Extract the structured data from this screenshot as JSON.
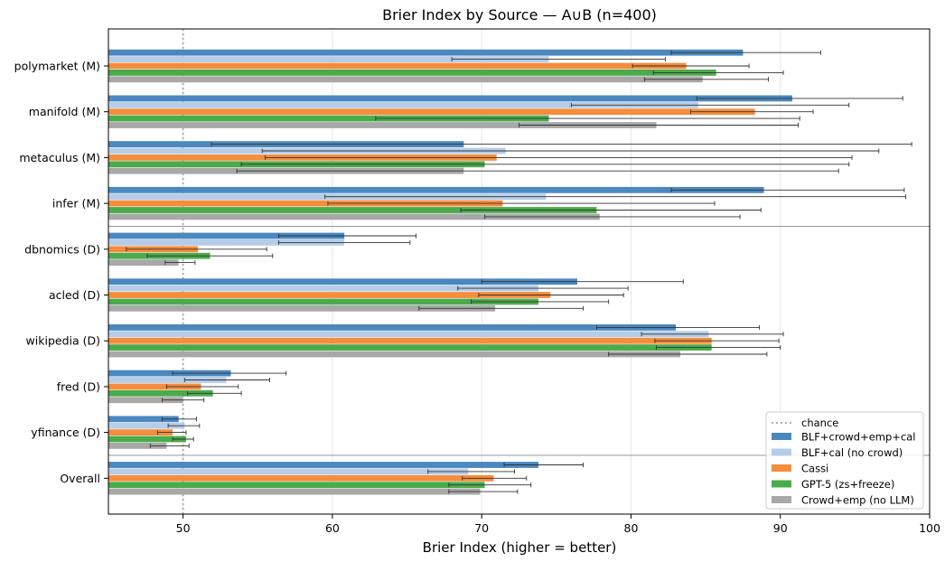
{
  "chart_data": {
    "type": "bar",
    "orientation": "horizontal",
    "title": "Brier Index by Source — A∪B (n=400)",
    "xlabel": "Brier Index (higher = better)",
    "ylabel": "",
    "xlim": [
      45,
      100
    ],
    "xticks": [
      50,
      60,
      70,
      80,
      90,
      100
    ],
    "grid": "x",
    "legend_position": "lower-right",
    "reference_line": {
      "name": "chance",
      "value": 50,
      "color": "#b0b0b0"
    },
    "categories": [
      "polymarket (M)",
      "manifold (M)",
      "metaculus (M)",
      "infer (M)",
      "dbnomics (D)",
      "acled (D)",
      "wikipedia (D)",
      "fred (D)",
      "yfinance (D)",
      "Overall"
    ],
    "group_separators_after": [
      "infer (M)",
      "yfinance (D)"
    ],
    "series": [
      {
        "name": "BLF+crowd+emp+cal",
        "color": "#4a88bf",
        "values": [
          87.5,
          90.8,
          68.8,
          88.9,
          60.8,
          76.4,
          83.0,
          53.2,
          49.7,
          73.8
        ],
        "err_low": [
          82.7,
          84.4,
          51.9,
          82.7,
          56.4,
          70.0,
          77.7,
          49.3,
          48.6,
          71.5
        ],
        "err_high": [
          92.7,
          98.2,
          98.8,
          98.3,
          65.6,
          83.5,
          88.6,
          56.9,
          50.9,
          76.8
        ]
      },
      {
        "name": "BLF+cal (no crowd)",
        "color": "#b5cde8",
        "values": [
          74.5,
          84.5,
          71.6,
          74.3,
          60.8,
          73.8,
          85.2,
          52.9,
          50.1,
          69.1
        ],
        "err_low": [
          68.0,
          76.0,
          55.3,
          59.5,
          56.4,
          68.4,
          80.7,
          50.1,
          49.0,
          66.4
        ],
        "err_high": [
          82.3,
          94.6,
          96.6,
          98.4,
          65.2,
          79.8,
          90.2,
          55.8,
          51.1,
          72.2
        ]
      },
      {
        "name": "Cassi",
        "color": "#f58d3c",
        "values": [
          83.7,
          88.3,
          71.0,
          71.4,
          51.0,
          74.6,
          85.4,
          51.2,
          49.3,
          70.8
        ],
        "err_low": [
          80.1,
          84.0,
          55.5,
          59.7,
          46.2,
          69.8,
          81.6,
          48.9,
          48.3,
          68.7
        ],
        "err_high": [
          87.9,
          92.2,
          94.8,
          85.6,
          55.6,
          79.5,
          89.9,
          53.7,
          50.2,
          73.0
        ]
      },
      {
        "name": "GPT-5 (zs+freeze)",
        "color": "#4aab4b",
        "values": [
          85.7,
          74.5,
          70.2,
          77.7,
          51.8,
          73.8,
          85.4,
          52.0,
          50.2,
          70.2
        ],
        "err_low": [
          81.5,
          62.9,
          53.9,
          68.6,
          47.6,
          69.3,
          81.7,
          50.3,
          49.3,
          67.8
        ],
        "err_high": [
          90.2,
          91.3,
          94.6,
          88.7,
          56.0,
          78.5,
          90.0,
          53.9,
          50.7,
          73.3
        ]
      },
      {
        "name": "Crowd+emp (no LLM)",
        "color": "#a8a8a8",
        "values": [
          84.8,
          81.7,
          68.8,
          77.9,
          49.7,
          70.9,
          83.3,
          50.0,
          48.9,
          69.9
        ],
        "err_low": [
          80.9,
          72.5,
          53.6,
          70.2,
          48.8,
          65.8,
          78.5,
          48.6,
          47.8,
          67.8
        ],
        "err_high": [
          89.2,
          91.2,
          93.9,
          87.3,
          50.8,
          76.8,
          89.1,
          51.4,
          50.4,
          72.4
        ]
      }
    ]
  }
}
